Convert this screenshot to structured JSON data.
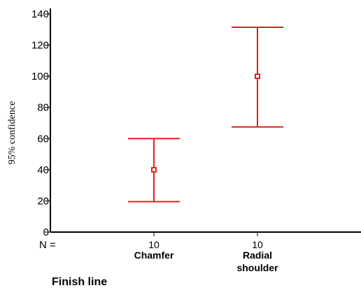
{
  "chart_data": {
    "type": "errorbar",
    "ylabel": "95% confidence",
    "xlabel": "Finish line",
    "n_label": "N =",
    "ylim": [
      0,
      140
    ],
    "yticks": [
      "0",
      "20",
      "40",
      "60",
      "80",
      "100",
      "120",
      "140"
    ],
    "grid": false,
    "color": "#e02020",
    "categories": [
      {
        "label": [
          "Chamfer"
        ],
        "n": "10",
        "mean": 40,
        "lower": 19.5,
        "upper": 60
      },
      {
        "label": [
          "Radial",
          "shoulder"
        ],
        "n": "10",
        "mean": 100,
        "lower": 67.5,
        "upper": 131.5
      }
    ]
  }
}
